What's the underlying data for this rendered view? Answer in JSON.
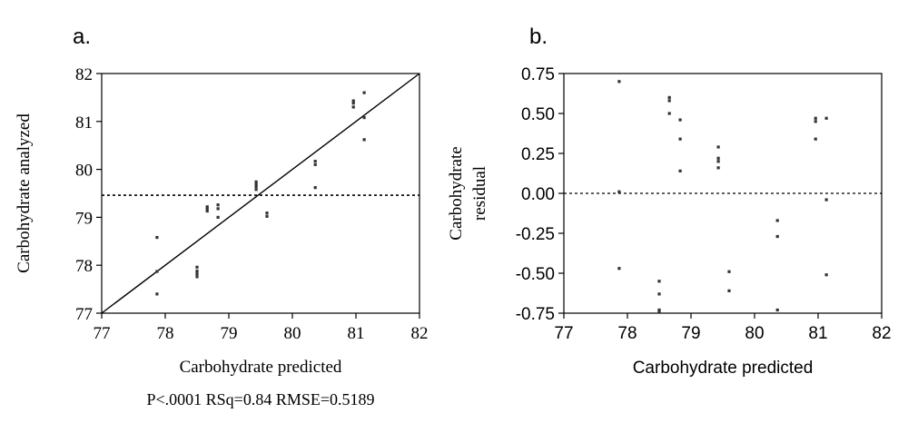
{
  "chart_data": [
    {
      "type": "scatter",
      "panel_label": "a.",
      "xlabel": "Carbohydrate predicted",
      "ylabel": "Carbohydrate analyzed",
      "xlim": [
        77,
        82
      ],
      "ylim": [
        77,
        82
      ],
      "xticks": [
        "77",
        "78",
        "79",
        "80",
        "81",
        "82"
      ],
      "yticks": [
        "77",
        "78",
        "79",
        "80",
        "81",
        "82"
      ],
      "points": [
        {
          "x": 77.87,
          "y": 78.58
        },
        {
          "x": 77.87,
          "y": 77.87
        },
        {
          "x": 77.87,
          "y": 77.4
        },
        {
          "x": 78.5,
          "y": 77.96
        },
        {
          "x": 78.5,
          "y": 77.88
        },
        {
          "x": 78.5,
          "y": 77.82
        },
        {
          "x": 78.5,
          "y": 77.76
        },
        {
          "x": 78.66,
          "y": 79.22
        },
        {
          "x": 78.66,
          "y": 79.18
        },
        {
          "x": 78.66,
          "y": 79.13
        },
        {
          "x": 78.83,
          "y": 79.26
        },
        {
          "x": 78.83,
          "y": 79.18
        },
        {
          "x": 78.83,
          "y": 79.0
        },
        {
          "x": 79.43,
          "y": 79.74
        },
        {
          "x": 79.43,
          "y": 79.69
        },
        {
          "x": 79.43,
          "y": 79.64
        },
        {
          "x": 79.43,
          "y": 79.58
        },
        {
          "x": 79.6,
          "y": 79.09
        },
        {
          "x": 79.6,
          "y": 79.02
        },
        {
          "x": 80.36,
          "y": 80.17
        },
        {
          "x": 80.36,
          "y": 80.1
        },
        {
          "x": 80.36,
          "y": 79.62
        },
        {
          "x": 80.96,
          "y": 81.43
        },
        {
          "x": 80.96,
          "y": 81.38
        },
        {
          "x": 80.96,
          "y": 81.3
        },
        {
          "x": 81.13,
          "y": 81.6
        },
        {
          "x": 81.13,
          "y": 81.08
        },
        {
          "x": 81.13,
          "y": 80.62
        }
      ],
      "fit_line": {
        "x": [
          77,
          82
        ],
        "y": [
          77,
          82
        ]
      },
      "mean_line_y": 79.46,
      "stats_text": "P<.0001 RSq=0.84 RMSE=0.5189"
    },
    {
      "type": "scatter",
      "panel_label": "b.",
      "xlabel": "Carbohydrate predicted",
      "ylabel": "Carbohydrate residual",
      "xlim": [
        77,
        82
      ],
      "ylim": [
        -0.75,
        0.75
      ],
      "xticks": [
        "77",
        "78",
        "79",
        "80",
        "81",
        "82"
      ],
      "yticks": [
        "-0.75",
        "-0.50",
        "-0.25",
        "0.00",
        "0.25",
        "0.50",
        "0.75"
      ],
      "points": [
        {
          "x": 77.87,
          "y": 0.7
        },
        {
          "x": 77.87,
          "y": 0.01
        },
        {
          "x": 77.87,
          "y": -0.47
        },
        {
          "x": 78.5,
          "y": -0.55
        },
        {
          "x": 78.5,
          "y": -0.63
        },
        {
          "x": 78.5,
          "y": -0.73
        },
        {
          "x": 78.5,
          "y": -0.74
        },
        {
          "x": 78.66,
          "y": 0.6
        },
        {
          "x": 78.66,
          "y": 0.58
        },
        {
          "x": 78.66,
          "y": 0.5
        },
        {
          "x": 78.83,
          "y": 0.46
        },
        {
          "x": 78.83,
          "y": 0.34
        },
        {
          "x": 78.83,
          "y": 0.14
        },
        {
          "x": 79.43,
          "y": 0.29
        },
        {
          "x": 79.43,
          "y": 0.22
        },
        {
          "x": 79.43,
          "y": 0.2
        },
        {
          "x": 79.43,
          "y": 0.16
        },
        {
          "x": 79.6,
          "y": -0.49
        },
        {
          "x": 79.6,
          "y": -0.61
        },
        {
          "x": 80.36,
          "y": -0.17
        },
        {
          "x": 80.36,
          "y": -0.27
        },
        {
          "x": 80.36,
          "y": -0.73
        },
        {
          "x": 80.96,
          "y": 0.47
        },
        {
          "x": 80.96,
          "y": 0.45
        },
        {
          "x": 80.96,
          "y": 0.34
        },
        {
          "x": 81.13,
          "y": 0.47
        },
        {
          "x": 81.13,
          "y": -0.04
        },
        {
          "x": 81.13,
          "y": -0.51
        }
      ],
      "zero_line_y": 0
    }
  ]
}
